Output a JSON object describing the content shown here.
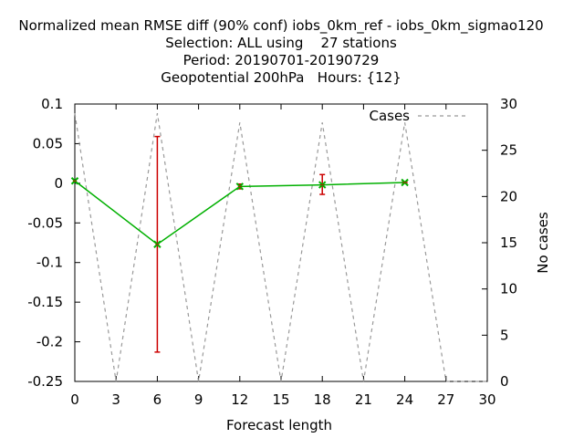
{
  "chart_data": {
    "type": "line",
    "title_lines": [
      "Normalized mean RMSE diff (90% conf) iobs_0km_ref - iobs_0km_sigmao120",
      "Selection: ALL using    27 stations",
      "Period: 20190701-20190729",
      "Geopotential 200hPa   Hours: {12}"
    ],
    "xlabel": "Forecast length",
    "ylabel": "",
    "y2label": "No cases",
    "xlim": [
      0,
      30
    ],
    "ylim": [
      -0.25,
      0.1
    ],
    "y2lim": [
      0,
      30
    ],
    "x_ticks": [
      0,
      3,
      6,
      9,
      12,
      15,
      18,
      21,
      24,
      27,
      30
    ],
    "y_ticks": [
      0.1,
      0.05,
      0,
      -0.05,
      -0.1,
      -0.15,
      -0.2,
      -0.25
    ],
    "y_tick_labels": [
      "0.1",
      "0.05",
      "0",
      "-0.05",
      "-0.1",
      "-0.15",
      "-0.2",
      "-0.25"
    ],
    "y2_ticks": [
      30,
      25,
      20,
      15,
      10,
      5,
      0
    ],
    "grid": false,
    "legend_position": "top-right",
    "series": [
      {
        "kind": "diff",
        "color": "#00b000",
        "x": [
          0,
          6,
          12,
          18,
          24
        ],
        "y": [
          0.003,
          -0.077,
          -0.004,
          -0.002,
          0.001
        ],
        "err_low": [
          0.003,
          -0.213,
          -0.007,
          -0.014,
          0.0
        ],
        "err_high": [
          0.003,
          0.059,
          -0.001,
          0.011,
          0.002
        ],
        "error_color": "#cc0000"
      },
      {
        "name": "Cases",
        "kind": "cases",
        "axis": "y2",
        "color": "#999999",
        "x": [
          0,
          3,
          6,
          9,
          12,
          15,
          18,
          21,
          24,
          27,
          30
        ],
        "y": [
          29,
          0,
          29,
          0,
          28,
          0,
          28,
          0,
          28,
          0,
          0
        ]
      }
    ]
  }
}
